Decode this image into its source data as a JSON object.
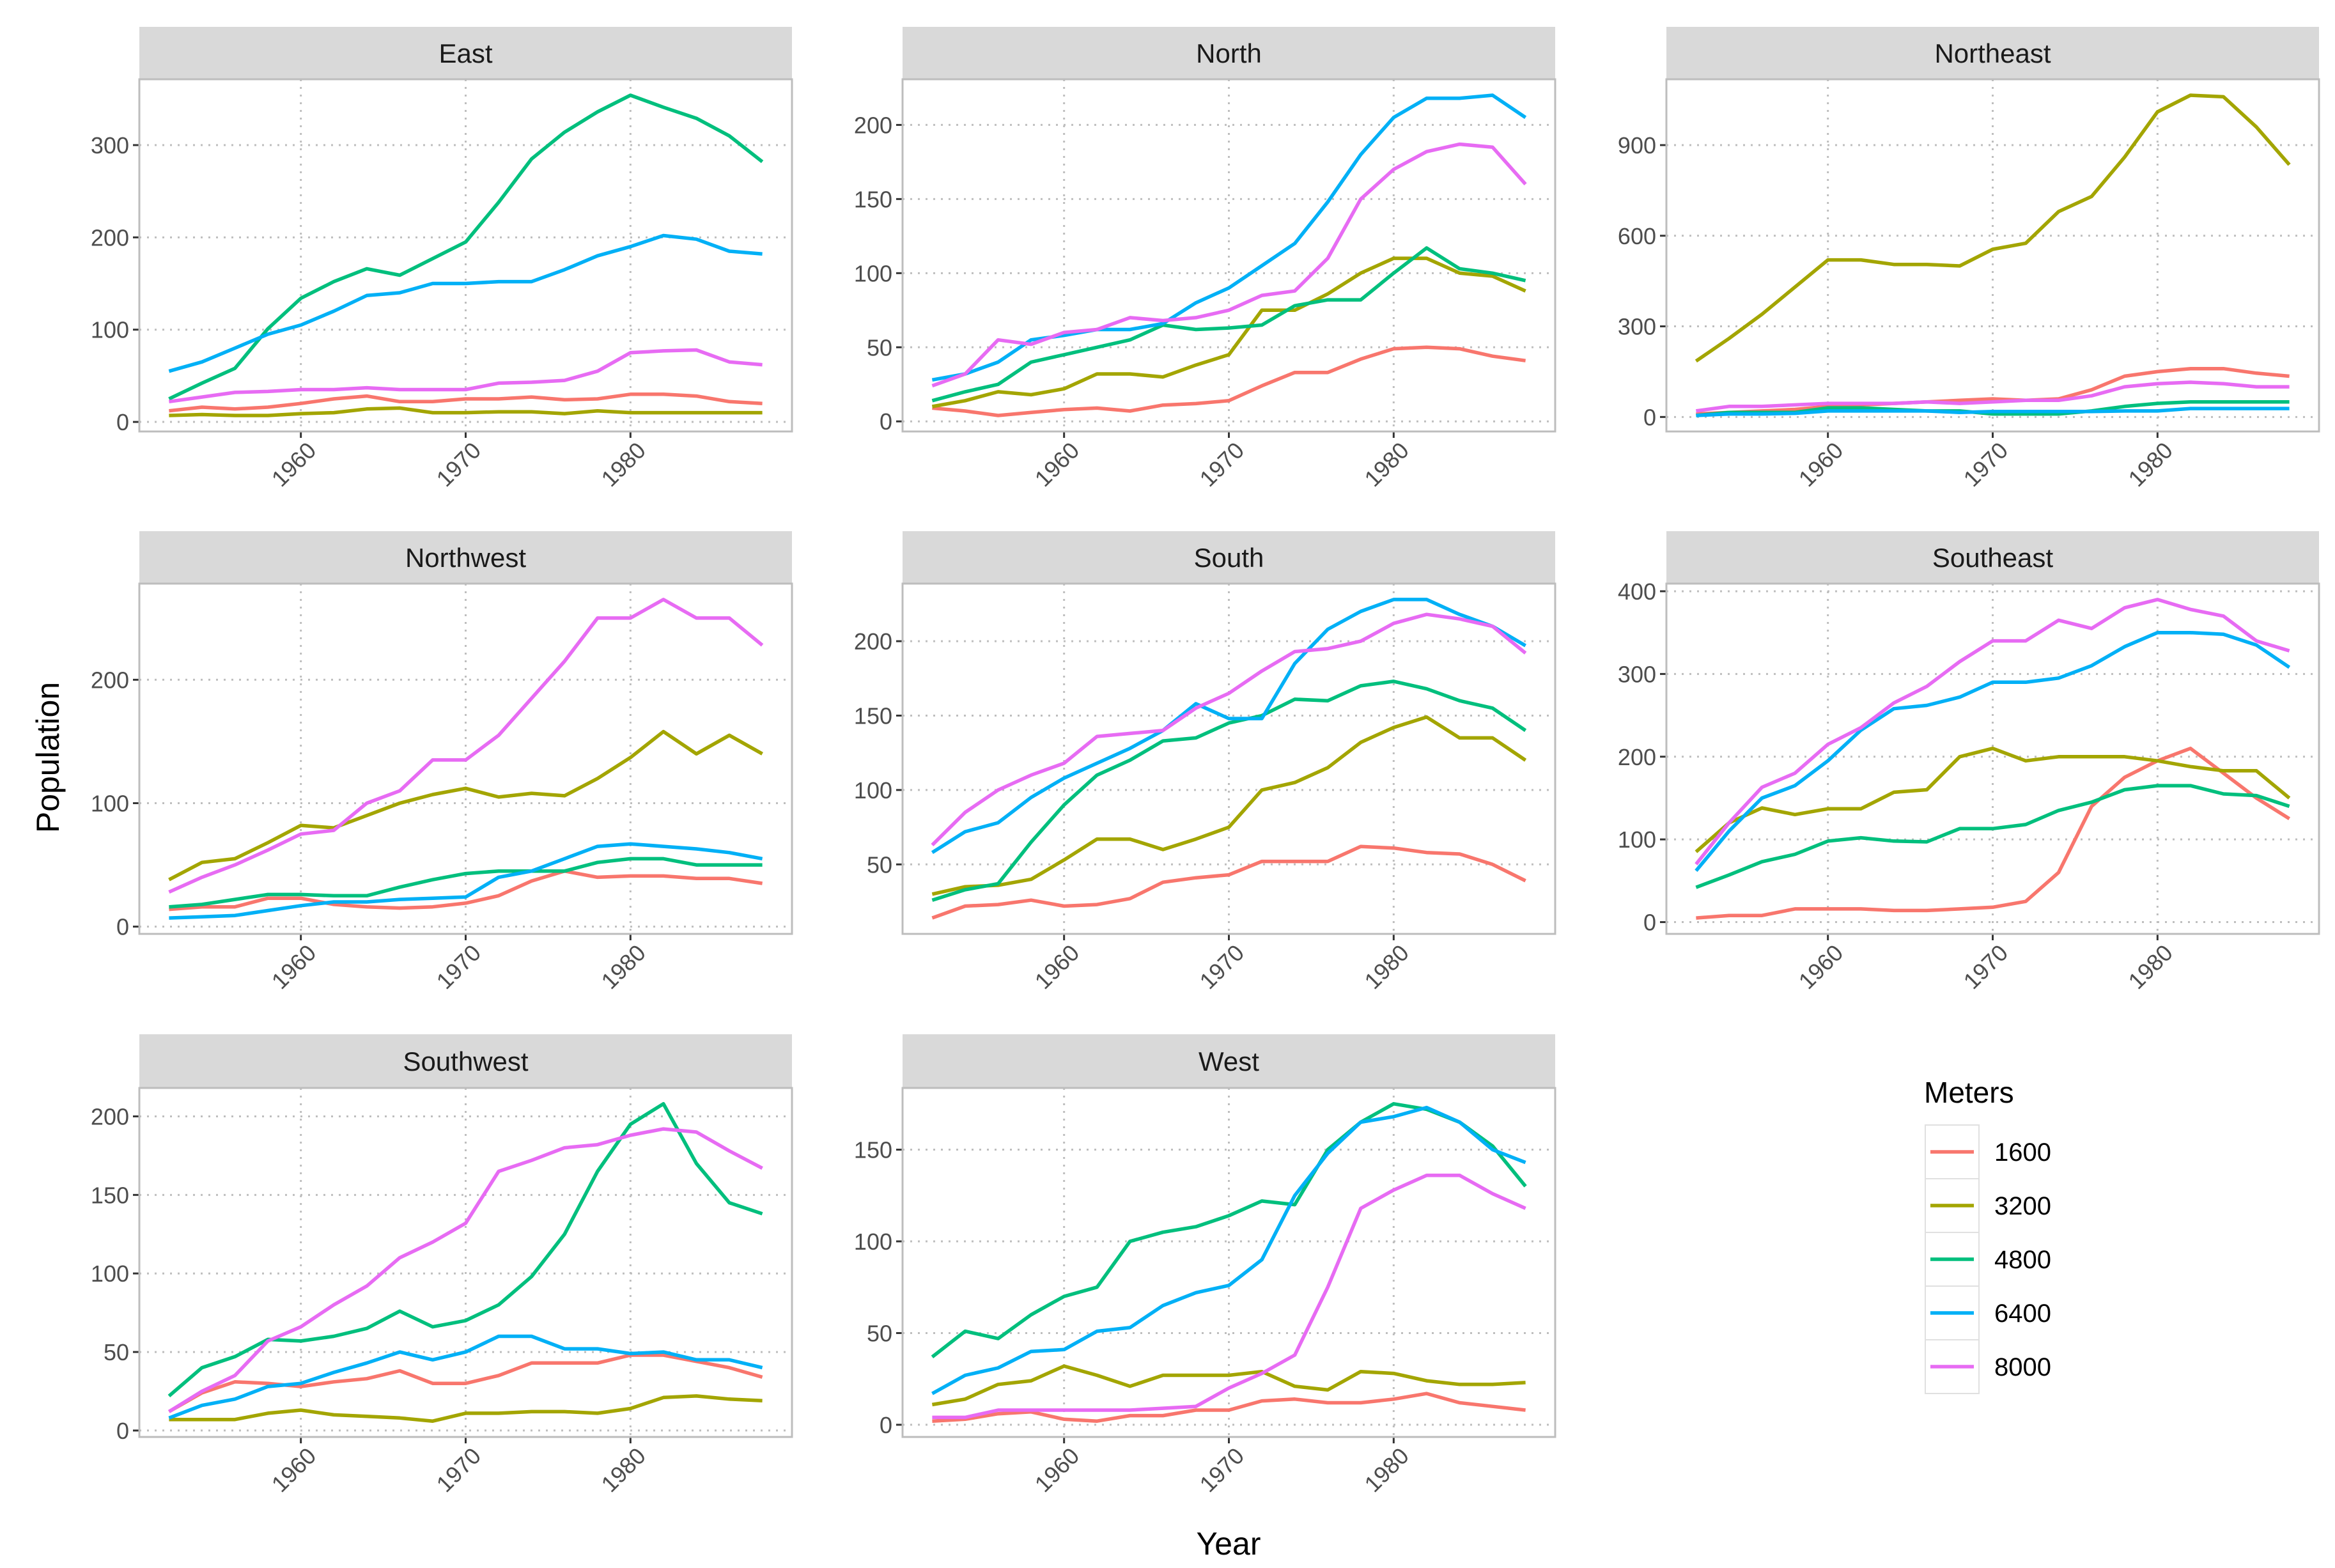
{
  "chart_data": {
    "type": "line",
    "layout": "faceted small multiples, 3 columns, free y scales",
    "xlabel": "Year",
    "ylabel": "Population",
    "x_ticks": [
      1960,
      1970,
      1980
    ],
    "xlim": [
      1950.2,
      1989.8
    ],
    "grid": "dotted major",
    "legend": {
      "title": "Meters",
      "placement": "right-bottom"
    },
    "series_keys": [
      "1600",
      "3200",
      "4800",
      "6400",
      "8000"
    ],
    "colors": {
      "1600": "#F8766D",
      "3200": "#A3A500",
      "4800": "#00BF7D",
      "6400": "#00B0F6",
      "8000": "#E76BF3"
    },
    "x": [
      1952,
      1954,
      1956,
      1958,
      1960,
      1962,
      1964,
      1966,
      1968,
      1970,
      1972,
      1974,
      1976,
      1978,
      1980,
      1982,
      1984,
      1986,
      1988
    ],
    "panels": [
      {
        "title": "East",
        "y_ticks": [
          0,
          100,
          200,
          300
        ],
        "series": {
          "1600": [
            12,
            16,
            14,
            16,
            20,
            25,
            28,
            22,
            22,
            25,
            25,
            27,
            24,
            25,
            30,
            30,
            28,
            22,
            20
          ],
          "3200": [
            7,
            8,
            7,
            7,
            9,
            10,
            14,
            15,
            10,
            10,
            11,
            11,
            9,
            12,
            10,
            10,
            10,
            10,
            10
          ],
          "4800": [
            25,
            42,
            58,
            101,
            134,
            152,
            166,
            159,
            177,
            195,
            238,
            285,
            314,
            336,
            354,
            341,
            329,
            310,
            282
          ],
          "6400": [
            55,
            65,
            80,
            95,
            105,
            120,
            137,
            140,
            150,
            150,
            152,
            152,
            165,
            180,
            190,
            202,
            198,
            185,
            182
          ],
          "8000": [
            22,
            27,
            32,
            33,
            35,
            35,
            37,
            35,
            35,
            35,
            42,
            43,
            45,
            55,
            75,
            77,
            78,
            65,
            62
          ]
        }
      },
      {
        "title": "North",
        "y_ticks": [
          0,
          50,
          100,
          150,
          200
        ],
        "series": {
          "1600": [
            9,
            7,
            4,
            6,
            8,
            9,
            7,
            11,
            12,
            14,
            24,
            33,
            33,
            42,
            49,
            50,
            49,
            44,
            41
          ],
          "3200": [
            10,
            14,
            20,
            18,
            22,
            32,
            32,
            30,
            38,
            45,
            75,
            75,
            86,
            100,
            110,
            110,
            100,
            98,
            88
          ],
          "4800": [
            14,
            20,
            25,
            40,
            45,
            50,
            55,
            65,
            62,
            63,
            65,
            78,
            82,
            82,
            100,
            117,
            103,
            100,
            95
          ],
          "6400": [
            28,
            32,
            40,
            55,
            58,
            62,
            62,
            66,
            80,
            90,
            105,
            120,
            148,
            180,
            205,
            218,
            218,
            220,
            205
          ],
          "8000": [
            24,
            32,
            55,
            52,
            60,
            62,
            70,
            68,
            70,
            75,
            85,
            88,
            110,
            150,
            170,
            182,
            187,
            185,
            160
          ]
        }
      },
      {
        "title": "Northeast",
        "y_ticks": [
          0,
          300,
          600,
          900
        ],
        "series": {
          "1600": [
            10,
            15,
            20,
            25,
            35,
            40,
            45,
            50,
            55,
            60,
            55,
            60,
            90,
            135,
            150,
            160,
            160,
            145,
            135
          ],
          "3200": [
            185,
            260,
            340,
            430,
            520,
            520,
            505,
            505,
            500,
            555,
            575,
            680,
            730,
            860,
            1010,
            1065,
            1060,
            960,
            835
          ],
          "4800": [
            5,
            15,
            15,
            15,
            30,
            30,
            25,
            20,
            20,
            10,
            10,
            10,
            20,
            35,
            45,
            50,
            50,
            50,
            50
          ],
          "6400": [
            5,
            10,
            10,
            12,
            20,
            20,
            20,
            20,
            15,
            18,
            18,
            18,
            18,
            20,
            20,
            28,
            28,
            28,
            28
          ],
          "8000": [
            20,
            35,
            35,
            40,
            45,
            45,
            45,
            50,
            45,
            50,
            55,
            55,
            70,
            100,
            110,
            115,
            110,
            100,
            100
          ]
        }
      },
      {
        "title": "Northwest",
        "y_ticks": [
          0,
          100,
          200
        ],
        "series": {
          "1600": [
            14,
            16,
            16,
            23,
            23,
            18,
            16,
            15,
            16,
            19,
            25,
            37,
            45,
            40,
            41,
            41,
            39,
            39,
            35
          ],
          "3200": [
            38,
            52,
            55,
            68,
            82,
            80,
            90,
            100,
            107,
            112,
            105,
            108,
            106,
            120,
            137,
            158,
            140,
            155,
            140
          ],
          "4800": [
            16,
            18,
            22,
            26,
            26,
            25,
            25,
            32,
            38,
            43,
            45,
            45,
            45,
            52,
            55,
            55,
            50,
            50,
            50
          ],
          "6400": [
            7,
            8,
            9,
            13,
            17,
            20,
            20,
            22,
            23,
            24,
            40,
            45,
            55,
            65,
            67,
            65,
            63,
            60,
            55
          ],
          "8000": [
            28,
            40,
            50,
            62,
            75,
            78,
            100,
            110,
            135,
            135,
            155,
            185,
            215,
            250,
            250,
            265,
            250,
            250,
            228
          ]
        }
      },
      {
        "title": "South",
        "y_ticks": [
          50,
          100,
          150,
          200
        ],
        "series": {
          "1600": [
            14,
            22,
            23,
            26,
            22,
            23,
            27,
            38,
            41,
            43,
            52,
            52,
            52,
            62,
            61,
            58,
            57,
            50,
            39
          ],
          "3200": [
            30,
            35,
            36,
            40,
            53,
            67,
            67,
            60,
            67,
            75,
            100,
            105,
            115,
            132,
            142,
            149,
            135,
            135,
            120
          ],
          "4800": [
            26,
            33,
            37,
            65,
            90,
            110,
            120,
            133,
            135,
            145,
            150,
            161,
            160,
            170,
            173,
            168,
            160,
            155,
            140
          ],
          "6400": [
            58,
            72,
            78,
            95,
            108,
            118,
            128,
            140,
            158,
            148,
            148,
            185,
            208,
            220,
            228,
            228,
            218,
            210,
            197
          ],
          "8000": [
            63,
            85,
            100,
            110,
            118,
            136,
            138,
            140,
            155,
            165,
            180,
            193,
            195,
            200,
            212,
            218,
            215,
            210,
            192
          ]
        }
      },
      {
        "title": "Southeast",
        "y_ticks": [
          0,
          100,
          200,
          300,
          400
        ],
        "series": {
          "1600": [
            5,
            8,
            8,
            16,
            16,
            16,
            14,
            14,
            16,
            18,
            25,
            60,
            140,
            175,
            195,
            210,
            180,
            150,
            125
          ],
          "3200": [
            85,
            120,
            138,
            130,
            137,
            137,
            157,
            160,
            200,
            210,
            195,
            200,
            200,
            200,
            195,
            188,
            183,
            183,
            150
          ],
          "4800": [
            42,
            57,
            73,
            82,
            98,
            102,
            98,
            97,
            113,
            113,
            118,
            135,
            145,
            160,
            165,
            165,
            155,
            153,
            140
          ],
          "6400": [
            62,
            110,
            150,
            165,
            195,
            232,
            258,
            262,
            272,
            290,
            290,
            295,
            310,
            333,
            350,
            350,
            348,
            335,
            308
          ],
          "8000": [
            70,
            120,
            163,
            180,
            215,
            235,
            265,
            285,
            315,
            340,
            340,
            365,
            355,
            380,
            390,
            378,
            370,
            340,
            328
          ]
        }
      },
      {
        "title": "Southwest",
        "y_ticks": [
          0,
          50,
          100,
          150,
          200
        ],
        "series": {
          "1600": [
            12,
            24,
            31,
            30,
            28,
            31,
            33,
            38,
            30,
            30,
            35,
            43,
            43,
            43,
            48,
            48,
            44,
            40,
            34
          ],
          "3200": [
            7,
            7,
            7,
            11,
            13,
            10,
            9,
            8,
            6,
            11,
            11,
            12,
            12,
            11,
            14,
            21,
            22,
            20,
            19
          ],
          "4800": [
            22,
            40,
            47,
            58,
            57,
            60,
            65,
            76,
            66,
            70,
            80,
            98,
            125,
            165,
            195,
            208,
            170,
            145,
            138
          ],
          "6400": [
            8,
            16,
            20,
            28,
            30,
            37,
            43,
            50,
            45,
            50,
            60,
            60,
            52,
            52,
            49,
            50,
            45,
            45,
            40
          ],
          "8000": [
            12,
            25,
            35,
            57,
            66,
            80,
            92,
            110,
            120,
            132,
            165,
            172,
            180,
            182,
            188,
            192,
            190,
            178,
            167
          ]
        }
      },
      {
        "title": "West",
        "y_ticks": [
          0,
          50,
          100,
          150
        ],
        "series": {
          "1600": [
            2,
            3,
            6,
            7,
            3,
            2,
            5,
            5,
            8,
            8,
            13,
            14,
            12,
            12,
            14,
            17,
            12,
            10,
            8
          ],
          "3200": [
            11,
            14,
            22,
            24,
            32,
            27,
            21,
            27,
            27,
            27,
            29,
            21,
            19,
            29,
            28,
            24,
            22,
            22,
            23
          ],
          "4800": [
            37,
            51,
            47,
            60,
            70,
            75,
            100,
            105,
            108,
            114,
            122,
            120,
            150,
            165,
            175,
            172,
            165,
            152,
            130
          ],
          "6400": [
            17,
            27,
            31,
            40,
            41,
            51,
            53,
            65,
            72,
            76,
            90,
            125,
            148,
            165,
            168,
            173,
            165,
            150,
            143
          ],
          "8000": [
            4,
            4,
            8,
            8,
            8,
            8,
            8,
            9,
            10,
            20,
            28,
            38,
            75,
            118,
            128,
            136,
            136,
            126,
            118
          ]
        }
      }
    ]
  }
}
